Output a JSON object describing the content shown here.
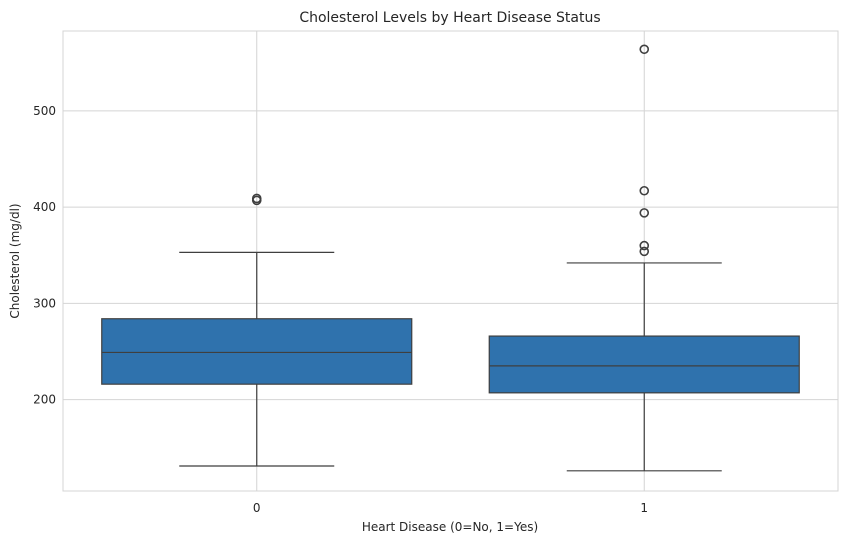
{
  "chart_data": {
    "type": "box",
    "title": "Cholesterol Levels by Heart Disease Status",
    "xlabel": "Heart Disease (0=No, 1=Yes)",
    "ylabel": "Cholesterol (mg/dl)",
    "categories": [
      "0",
      "1"
    ],
    "ylim": [
      105,
      583
    ],
    "yticks": [
      200,
      300,
      400,
      500
    ],
    "grid": true,
    "legend": "none",
    "box_color": "#2f72ad",
    "line_color": "#3f3f3f",
    "grid_color": "#d4d4d4",
    "boxes": [
      {
        "category": "0",
        "whisker_low": 131,
        "q1": 216,
        "median": 249,
        "q3": 284,
        "whisker_high": 353,
        "outliers": [
          407,
          409
        ]
      },
      {
        "category": "1",
        "whisker_low": 126,
        "q1": 207,
        "median": 235,
        "q3": 266,
        "whisker_high": 342,
        "outliers": [
          354,
          360,
          394,
          417,
          564
        ]
      }
    ]
  }
}
